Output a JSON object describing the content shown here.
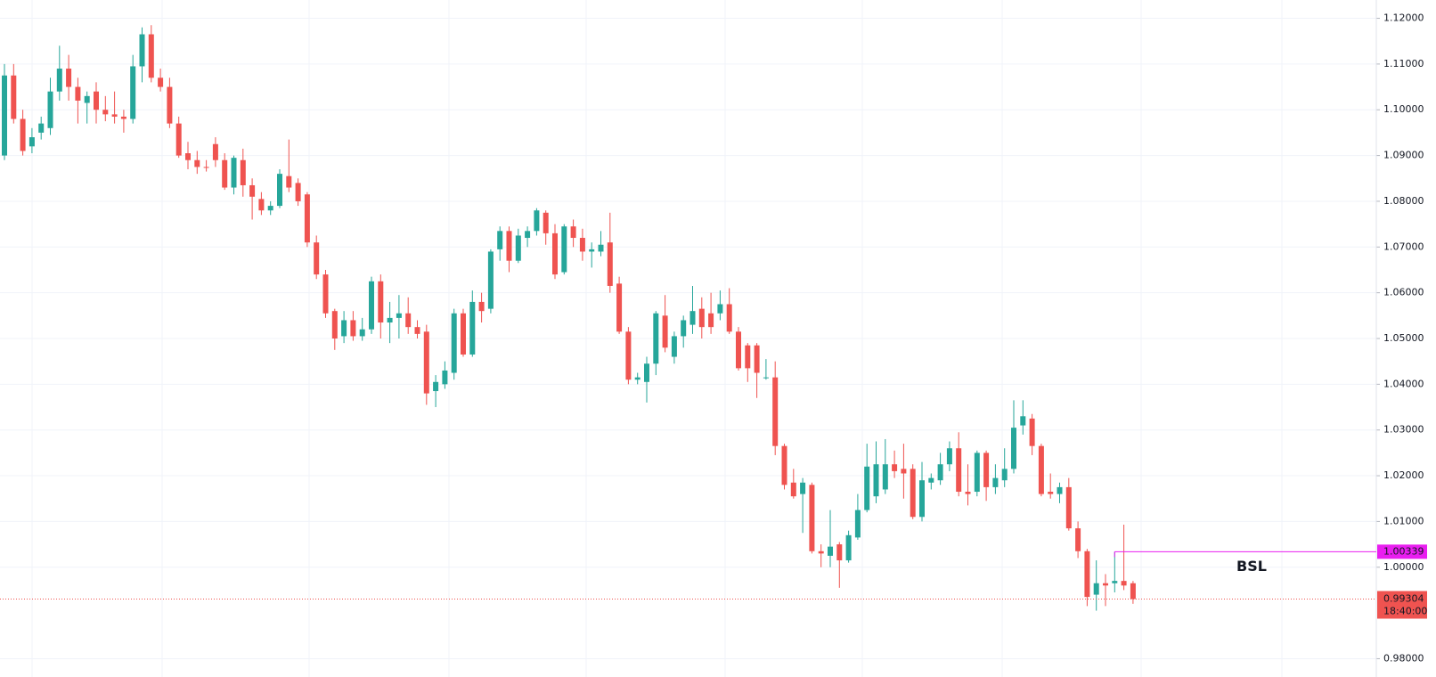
{
  "chart_data": {
    "type": "candlestick",
    "up_color": "#26a69a",
    "down_color": "#ef5350",
    "ylim": [
      0.976,
      1.124
    ],
    "yticks": [
      {
        "value": 0.98,
        "label": "0.98000"
      },
      {
        "value": 1.0,
        "label": "1.00000"
      },
      {
        "value": 1.01,
        "label": "1.01000"
      },
      {
        "value": 1.02,
        "label": "1.02000"
      },
      {
        "value": 1.03,
        "label": "1.03000"
      },
      {
        "value": 1.04,
        "label": "1.04000"
      },
      {
        "value": 1.05,
        "label": "1.05000"
      },
      {
        "value": 1.06,
        "label": "1.06000"
      },
      {
        "value": 1.07,
        "label": "1.07000"
      },
      {
        "value": 1.08,
        "label": "1.08000"
      },
      {
        "value": 1.09,
        "label": "1.09000"
      },
      {
        "value": 1.1,
        "label": "1.10000"
      },
      {
        "value": 1.11,
        "label": "1.11000"
      },
      {
        "value": 1.12,
        "label": "1.12000"
      }
    ],
    "grid": true,
    "candles": {
      "open": [
        1.09,
        1.1075,
        1.098,
        1.092,
        1.095,
        1.096,
        1.104,
        1.109,
        1.105,
        1.1015,
        1.104,
        1.1,
        1.099,
        1.0985,
        1.098,
        1.1095,
        1.1165,
        1.107,
        1.105,
        1.097,
        1.0905,
        1.089,
        1.0875,
        1.0925,
        1.089,
        1.083,
        1.089,
        1.0835,
        1.0805,
        1.078,
        1.079,
        1.0855,
        1.084,
        1.0815,
        1.071,
        1.064,
        1.056,
        1.0505,
        1.054,
        1.0505,
        1.052,
        1.0625,
        1.0535,
        1.0545,
        1.0555,
        1.0525,
        1.0515,
        1.0385,
        1.04,
        1.0425,
        1.0555,
        1.0465,
        1.058,
        1.0565,
        1.0695,
        1.0735,
        1.067,
        1.072,
        1.0735,
        1.0775,
        1.073,
        1.0645,
        1.0745,
        1.072,
        1.069,
        1.069,
        1.071,
        1.062,
        1.0515,
        1.041,
        1.0405,
        1.0445,
        1.055,
        1.046,
        1.0505,
        1.053,
        1.0565,
        1.0555,
        1.0555,
        1.0575,
        1.0515,
        1.0485,
        1.0485,
        1.0415,
        1.0415,
        1.0265,
        1.0185,
        1.016,
        1.018,
        1.0035,
        1.0025,
        1.005,
        1.0015,
        1.0065,
        1.0125,
        1.0155,
        1.017,
        1.0225,
        1.0215,
        1.0215,
        1.011,
        1.0185,
        1.019,
        1.0225,
        1.026,
        1.0165,
        1.0165,
        1.025,
        1.0175,
        1.019,
        1.0215,
        1.031,
        1.0325,
        1.0265,
        1.0165,
        1.016,
        1.0175,
        1.0085,
        1.0035,
        0.994,
        0.9965,
        0.9965,
        0.997,
        0.9965
      ],
      "high": [
        1.11,
        1.11,
        1.1,
        1.096,
        1.0985,
        1.107,
        1.114,
        1.112,
        1.107,
        1.104,
        1.106,
        1.103,
        1.104,
        1.1,
        1.112,
        1.118,
        1.1185,
        1.109,
        1.107,
        1.0985,
        1.093,
        1.091,
        1.089,
        1.094,
        1.0905,
        1.09,
        1.0915,
        1.085,
        1.082,
        1.08,
        1.087,
        1.0935,
        1.085,
        1.082,
        1.0725,
        1.065,
        1.0565,
        1.056,
        1.056,
        1.0545,
        1.0635,
        1.064,
        1.058,
        1.0595,
        1.059,
        1.054,
        1.053,
        1.042,
        1.045,
        1.0565,
        1.0565,
        1.0605,
        1.06,
        1.0695,
        1.0745,
        1.0745,
        1.074,
        1.0745,
        1.0785,
        1.078,
        1.075,
        1.075,
        1.076,
        1.074,
        1.071,
        1.0735,
        1.0775,
        1.0635,
        1.0525,
        1.0425,
        1.046,
        1.056,
        1.0595,
        1.0515,
        1.055,
        1.0615,
        1.059,
        1.06,
        1.0605,
        1.061,
        1.0525,
        1.049,
        1.049,
        1.0455,
        1.045,
        1.027,
        1.0215,
        1.0195,
        1.0185,
        1.005,
        1.0125,
        1.0055,
        1.008,
        1.016,
        1.027,
        1.0275,
        1.028,
        1.0255,
        1.027,
        1.0225,
        1.023,
        1.0205,
        1.025,
        1.0275,
        1.0295,
        1.0225,
        1.0255,
        1.0255,
        1.0225,
        1.026,
        1.0365,
        1.0365,
        1.0335,
        1.027,
        1.0205,
        1.0185,
        1.0195,
        1.01,
        1.004,
        1.0015,
        0.9985,
        1.00339,
        1.0093,
        0.997
      ],
      "low": [
        1.089,
        1.097,
        1.09,
        1.0905,
        1.0935,
        1.0945,
        1.102,
        1.102,
        1.097,
        1.097,
        1.097,
        1.0975,
        1.097,
        1.095,
        1.097,
        1.106,
        1.106,
        1.104,
        1.096,
        1.0895,
        1.087,
        1.086,
        1.0865,
        1.0875,
        1.0825,
        1.0815,
        1.081,
        1.076,
        1.077,
        1.077,
        1.0785,
        1.082,
        1.079,
        1.07,
        1.063,
        1.0545,
        1.0475,
        1.049,
        1.0495,
        1.0495,
        1.051,
        1.05,
        1.049,
        1.05,
        1.051,
        1.05,
        1.0355,
        1.035,
        1.039,
        1.041,
        1.046,
        1.046,
        1.0535,
        1.0555,
        1.067,
        1.0645,
        1.0665,
        1.07,
        1.0725,
        1.0705,
        1.063,
        1.064,
        1.07,
        1.067,
        1.0655,
        1.068,
        1.06,
        1.051,
        1.04,
        1.04,
        1.036,
        1.042,
        1.047,
        1.0445,
        1.048,
        1.051,
        1.05,
        1.051,
        1.054,
        1.051,
        1.043,
        1.0405,
        1.037,
        1.041,
        1.0245,
        1.017,
        1.015,
        1.0075,
        1.003,
        1.0,
        1.0,
        0.9955,
        1.001,
        1.006,
        1.012,
        1.014,
        1.016,
        1.0195,
        1.015,
        1.0105,
        1.01,
        1.017,
        1.018,
        1.021,
        1.0155,
        1.0135,
        1.0155,
        1.0145,
        1.016,
        1.0175,
        1.0205,
        1.029,
        1.0245,
        1.0155,
        1.015,
        1.014,
        1.008,
        1.002,
        0.9915,
        0.9905,
        0.9915,
        0.9945,
        0.995,
        0.992
      ],
      "close": [
        1.1075,
        1.098,
        1.091,
        1.094,
        1.097,
        1.104,
        1.109,
        1.105,
        1.102,
        1.103,
        1.1,
        1.099,
        1.0985,
        1.098,
        1.1095,
        1.1165,
        1.107,
        1.105,
        1.097,
        1.09,
        1.089,
        1.0875,
        1.0873,
        1.089,
        1.083,
        1.0895,
        1.0835,
        1.081,
        1.078,
        1.079,
        1.086,
        1.083,
        1.08,
        1.071,
        1.064,
        1.0555,
        1.05,
        1.054,
        1.0505,
        1.052,
        1.0625,
        1.0535,
        1.0545,
        1.0555,
        1.0525,
        1.051,
        1.038,
        1.0405,
        1.043,
        1.0555,
        1.0465,
        1.058,
        1.056,
        1.069,
        1.0735,
        1.067,
        1.0725,
        1.0735,
        1.078,
        1.073,
        1.064,
        1.0745,
        1.072,
        1.069,
        1.0695,
        1.0705,
        1.0615,
        1.0515,
        1.041,
        1.0415,
        1.0445,
        1.0555,
        1.048,
        1.0505,
        1.054,
        1.056,
        1.0525,
        1.0525,
        1.0575,
        1.0515,
        1.0435,
        1.0435,
        1.0425,
        1.0415,
        1.0265,
        1.018,
        1.0155,
        1.0185,
        1.0035,
        1.003,
        1.0045,
        1.0015,
        1.007,
        1.0125,
        1.022,
        1.0225,
        1.0225,
        1.021,
        1.0205,
        1.011,
        1.019,
        1.0195,
        1.0225,
        1.026,
        1.0165,
        1.016,
        1.025,
        1.0175,
        1.0195,
        1.0215,
        1.0305,
        1.033,
        1.0265,
        1.016,
        1.016,
        1.0175,
        1.0085,
        1.0035,
        0.9935,
        0.9965,
        0.996,
        0.997,
        0.996,
        0.99304
      ]
    },
    "last_price": 0.99304,
    "countdown": "18:40:00",
    "level": {
      "price": 1.00339,
      "text": "BSL",
      "color": "#e91ef0"
    }
  }
}
